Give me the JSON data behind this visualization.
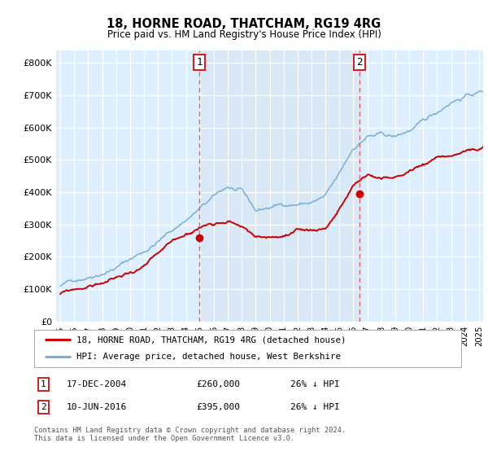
{
  "title": "18, HORNE ROAD, THATCHAM, RG19 4RG",
  "subtitle": "Price paid vs. HM Land Registry's House Price Index (HPI)",
  "ylabel_ticks": [
    "£0",
    "£100K",
    "£200K",
    "£300K",
    "£400K",
    "£500K",
    "£600K",
    "£700K",
    "£800K"
  ],
  "ylim": [
    0,
    840000
  ],
  "xlim_start": 1994.7,
  "xlim_end": 2025.3,
  "purchase1_date": 2004.96,
  "purchase1_price": 260000,
  "purchase2_date": 2016.44,
  "purchase2_price": 395000,
  "legend_line1": "18, HORNE ROAD, THATCHAM, RG19 4RG (detached house)",
  "legend_line2": "HPI: Average price, detached house, West Berkshire",
  "footnote": "Contains HM Land Registry data © Crown copyright and database right 2024.\nThis data is licensed under the Open Government Licence v3.0.",
  "line_color_red": "#cc0000",
  "line_color_blue": "#7aaed6",
  "shade_color": "#d8e8f5",
  "vline_color": "#e06060",
  "background_color": "#ddeeff",
  "plot_bg_color": "#ffffff",
  "grid_color": "#ffffff"
}
